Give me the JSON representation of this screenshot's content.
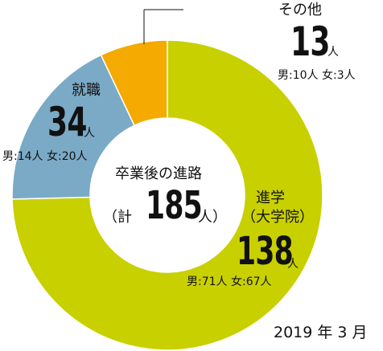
{
  "chart_data": {
    "type": "pie",
    "donut": true,
    "title": "卒業後の進路",
    "total": {
      "prefix": "（計",
      "value": "185",
      "suffix": "人）"
    },
    "date": "2019 年 3 月",
    "colors": [
      "#c9d000",
      "#7aaac6",
      "#f4aa00"
    ],
    "slices": [
      {
        "label": "進学",
        "sublabel": "（大学院）",
        "value": 138,
        "unit": "人",
        "detail": "男:71人 女:67人"
      },
      {
        "label": "就職",
        "sublabel": "",
        "value": 34,
        "unit": "人",
        "detail": "男:14人 女:20人"
      },
      {
        "label": "その他",
        "sublabel": "",
        "value": 13,
        "unit": "人",
        "detail": "男:10人 女:3人"
      }
    ]
  }
}
